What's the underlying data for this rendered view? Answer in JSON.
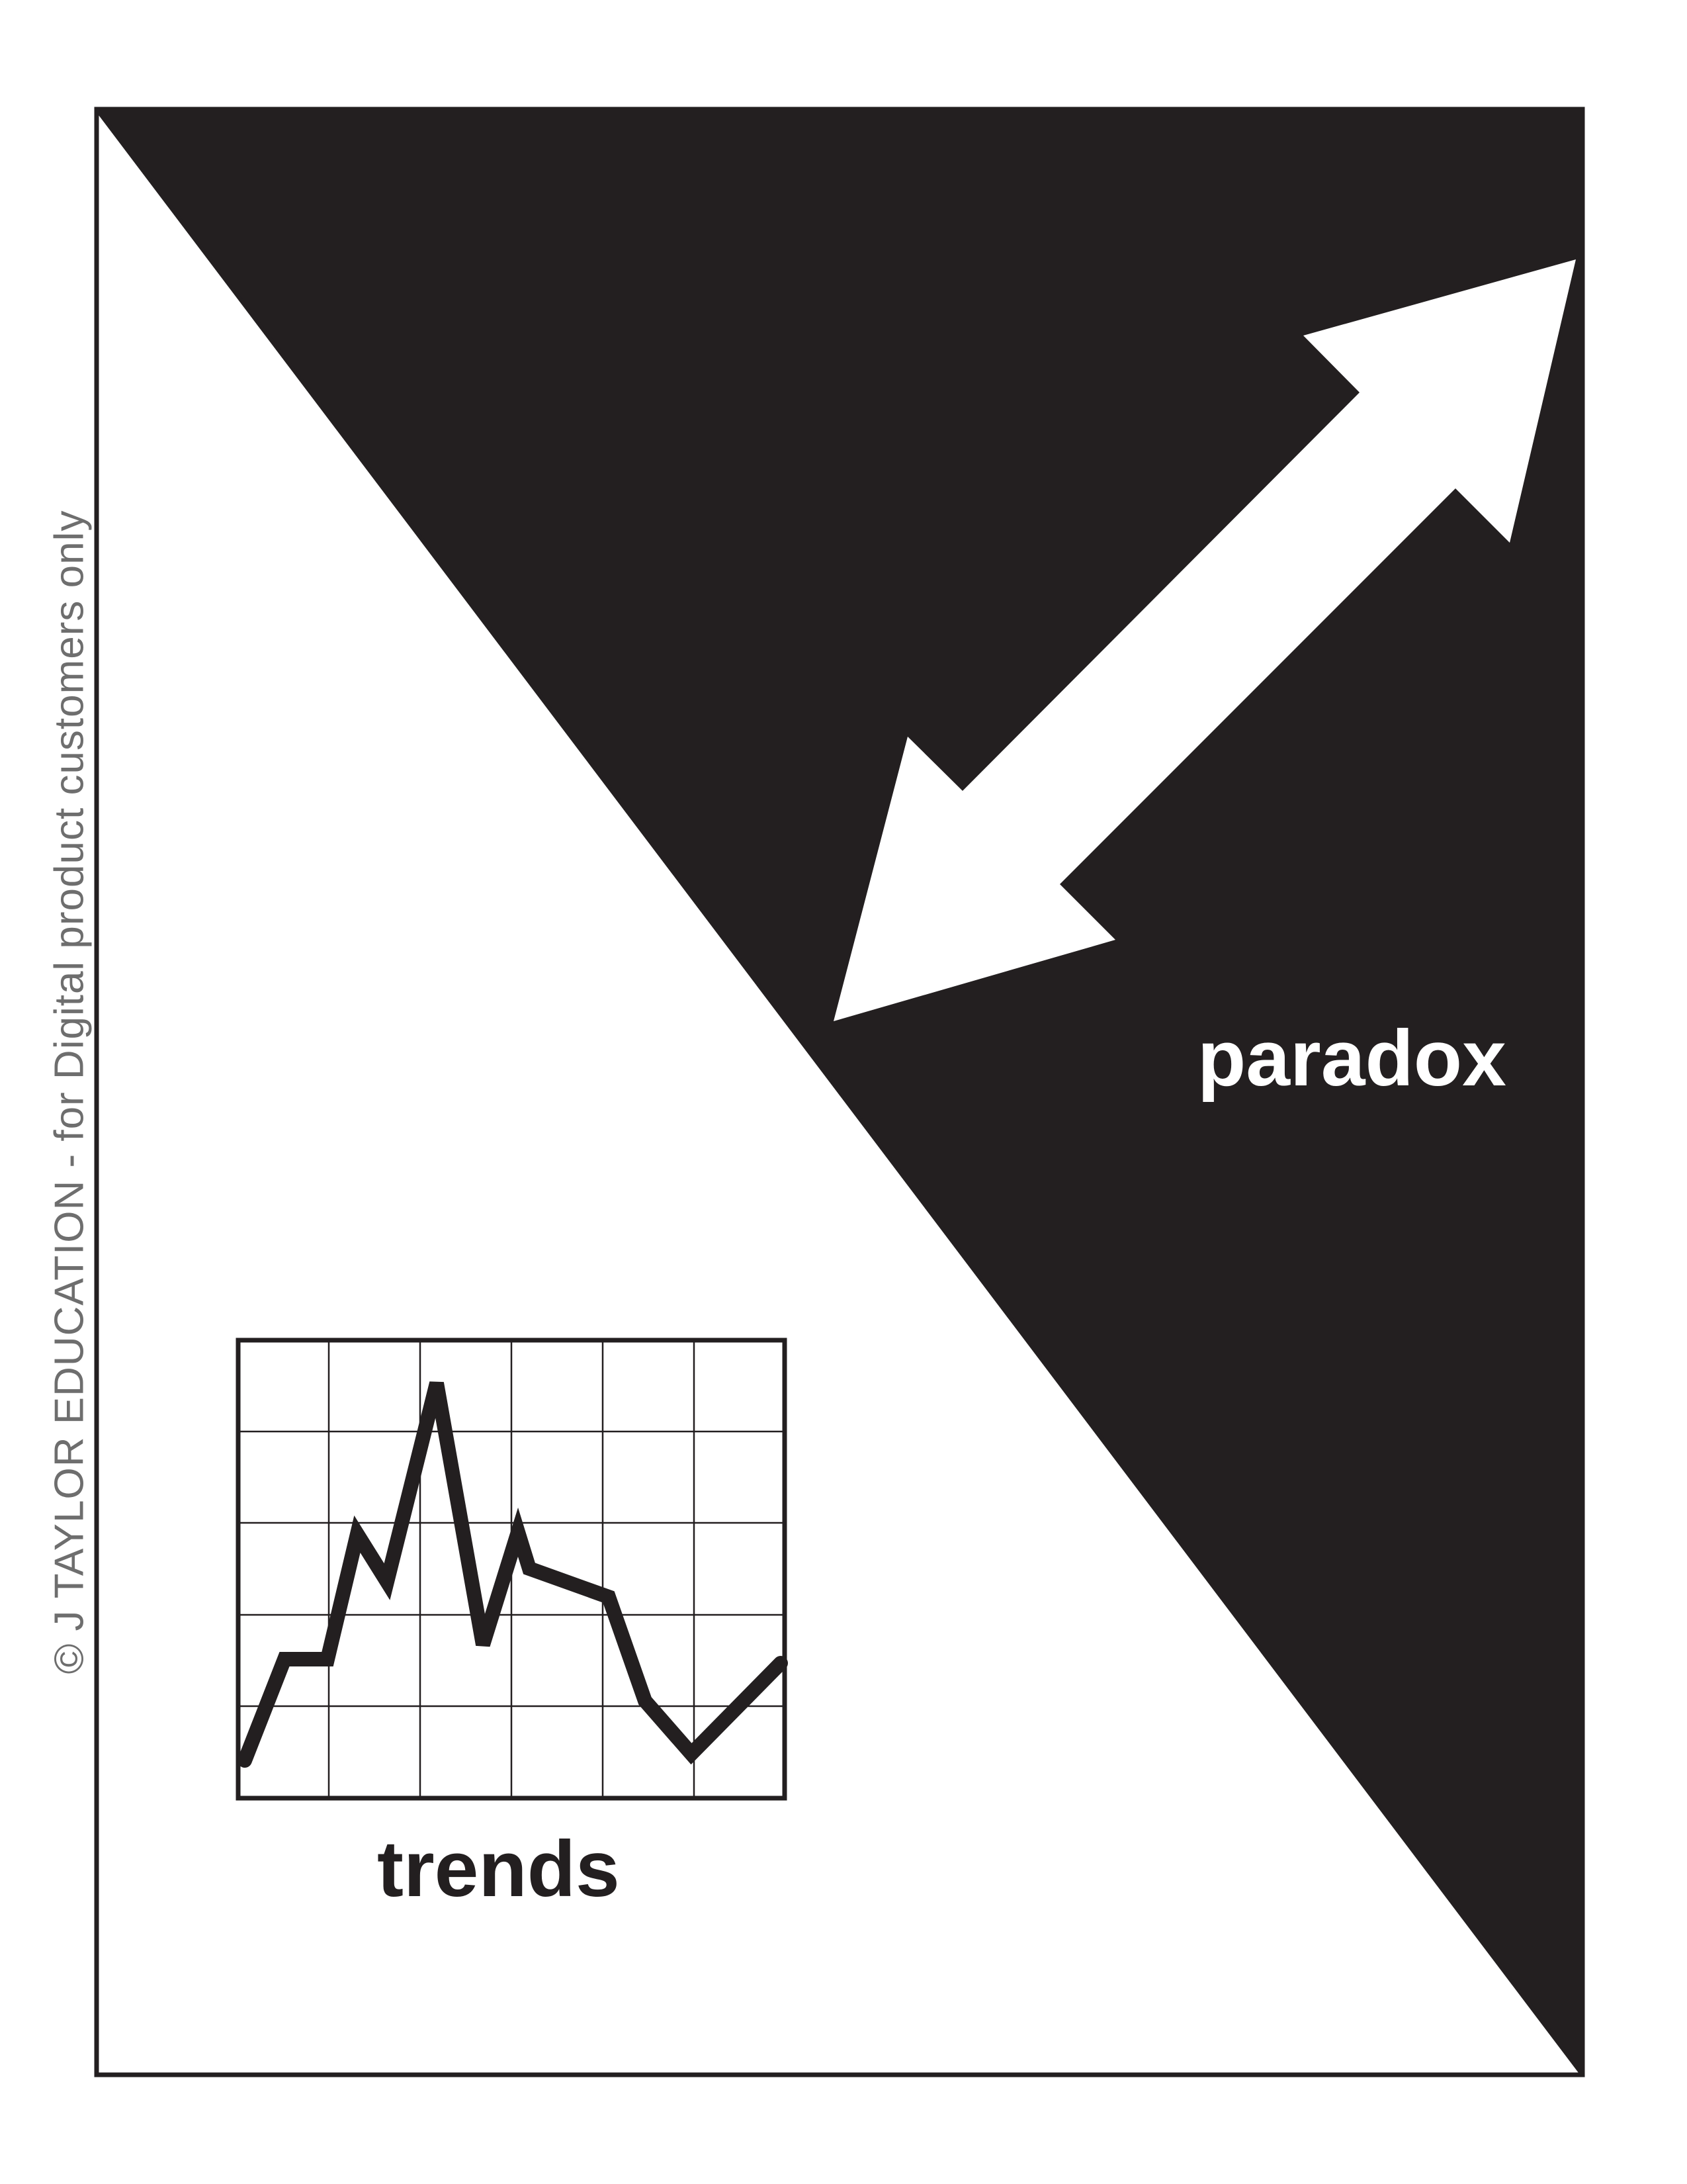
{
  "watermark": "© J TAYLOR EDUCATION - for Digital product customers only",
  "labels": {
    "paradox": "paradox",
    "trends": "trends"
  },
  "colors": {
    "ink": "#231f20",
    "paper": "#ffffff",
    "watermark": "#6e6e6e"
  },
  "icons": {
    "paradox": "double-headed-arrow-icon",
    "trends": "line-graph-icon"
  }
}
